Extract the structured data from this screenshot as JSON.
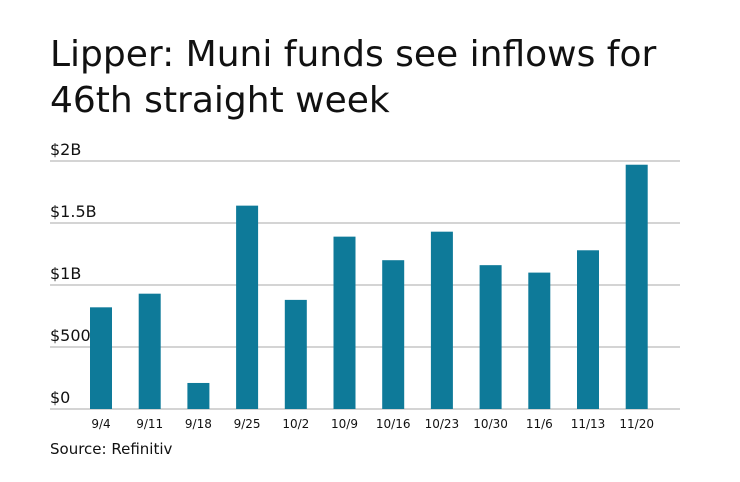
{
  "chart_data": {
    "type": "bar",
    "title": "Lipper: Muni funds see inflows for 46th straight week",
    "source": "Source: Refinitiv",
    "categories": [
      "9/4",
      "9/11",
      "9/18",
      "9/25",
      "10/2",
      "10/9",
      "10/16",
      "10/23",
      "10/30",
      "11/6",
      "11/13",
      "11/20"
    ],
    "values": [
      0.82,
      0.93,
      0.21,
      1.64,
      0.88,
      1.39,
      1.2,
      1.43,
      1.16,
      1.1,
      1.28,
      1.97
    ],
    "value_unit": "billions of dollars",
    "ylim": [
      0,
      2
    ],
    "y_ticks": [
      {
        "value": 0,
        "label": "$0"
      },
      {
        "value": 0.5,
        "label": "$500M"
      },
      {
        "value": 1,
        "label": "$1B"
      },
      {
        "value": 1.5,
        "label": "$1.5B"
      },
      {
        "value": 2,
        "label": "$2B"
      }
    ],
    "grid": true,
    "bar_color": "#0e7a99",
    "grid_color": "#aaaaaa"
  }
}
